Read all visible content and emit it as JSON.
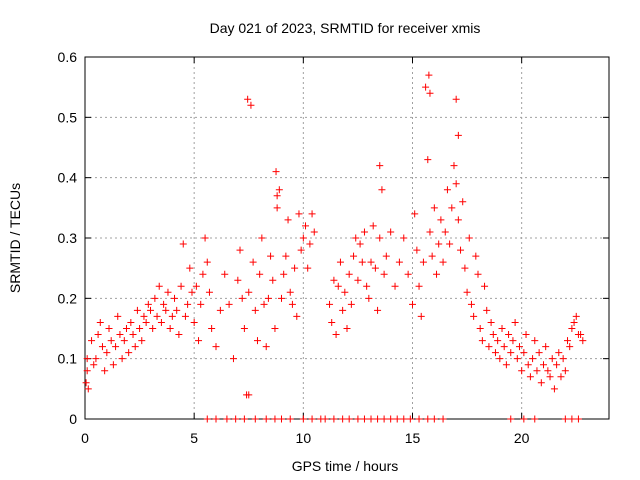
{
  "chart_data": {
    "type": "scatter",
    "title": "Day 021 of 2023, SRMTID for receiver xmis",
    "xlabel": "GPS time / hours",
    "ylabel": "SRMTID / TECUs",
    "xlim": [
      0,
      24
    ],
    "ylim": [
      0,
      0.6
    ],
    "xticks": [
      0,
      5,
      10,
      15,
      20
    ],
    "xtick_labels": [
      "0",
      "5",
      "10",
      "15",
      "20"
    ],
    "yticks": [
      0,
      0.1,
      0.2,
      0.3,
      0.4,
      0.5,
      0.6
    ],
    "ytick_labels": [
      "0",
      "0.1",
      "0.2",
      "0.3",
      "0.4",
      "0.5",
      "0.6"
    ],
    "grid": true,
    "marker": "+",
    "color": "#ff0000",
    "series": [
      {
        "name": "SRMTID",
        "x": [
          0.05,
          0.1,
          0.15,
          0.3,
          0.4,
          0.5,
          0.6,
          0.7,
          0.8,
          0.9,
          1.0,
          1.1,
          1.2,
          1.3,
          1.4,
          1.5,
          1.6,
          1.7,
          1.8,
          1.9,
          2.0,
          2.1,
          2.2,
          2.3,
          2.4,
          2.5,
          2.6,
          2.7,
          2.8,
          2.9,
          3.0,
          3.1,
          3.2,
          3.3,
          3.4,
          3.5,
          3.6,
          3.7,
          3.8,
          3.9,
          4.0,
          4.1,
          4.2,
          4.3,
          4.4,
          4.5,
          4.6,
          4.7,
          4.8,
          4.9,
          5.0,
          5.1,
          5.2,
          5.3,
          5.4,
          5.5,
          5.6,
          5.7,
          5.8,
          6.0,
          6.2,
          6.4,
          6.6,
          6.8,
          7.0,
          7.1,
          7.2,
          7.3,
          7.4,
          7.5,
          7.6,
          7.7,
          7.8,
          7.9,
          8.0,
          8.1,
          8.2,
          8.3,
          8.4,
          8.5,
          8.6,
          8.7,
          8.8,
          8.9,
          9.0,
          9.1,
          9.2,
          9.3,
          9.4,
          9.5,
          9.6,
          9.7,
          9.8,
          9.9,
          10.0,
          10.1,
          10.2,
          10.3,
          10.4,
          10.5,
          11.2,
          11.3,
          11.4,
          11.5,
          11.6,
          11.7,
          11.8,
          11.9,
          12.0,
          12.1,
          12.2,
          12.3,
          12.4,
          12.5,
          12.6,
          12.7,
          12.8,
          12.9,
          13.0,
          13.1,
          13.2,
          13.3,
          13.4,
          13.5,
          13.6,
          13.7,
          13.8,
          14.0,
          14.2,
          14.4,
          14.6,
          14.8,
          15.0,
          15.1,
          15.2,
          15.3,
          15.4,
          15.5,
          15.6,
          15.7,
          15.8,
          15.9,
          16.0,
          16.1,
          16.2,
          16.3,
          16.4,
          16.5,
          16.6,
          16.7,
          16.8,
          16.9,
          17.0,
          17.1,
          17.2,
          17.3,
          17.4,
          17.5,
          17.6,
          17.7,
          17.8,
          17.9,
          18.0,
          18.1,
          18.2,
          18.3,
          18.4,
          18.5,
          18.6,
          18.7,
          18.8,
          18.9,
          19.0,
          19.1,
          19.2,
          19.3,
          19.4,
          19.5,
          19.6,
          19.7,
          19.8,
          19.9,
          20.0,
          20.1,
          20.2,
          20.3,
          20.4,
          20.5,
          20.6,
          20.7,
          20.8,
          20.9,
          21.0,
          21.1,
          21.2,
          21.3,
          21.4,
          21.5,
          21.6,
          21.7,
          21.8,
          21.9,
          22.0,
          22.1,
          22.2,
          22.3,
          22.4,
          22.5,
          22.6,
          22.7,
          22.8,
          7.45,
          7.5,
          15.75,
          15.8,
          17.0,
          17.1,
          8.75,
          8.8,
          13.5,
          0.1,
          5.6,
          6.0,
          6.5,
          6.9,
          7.3,
          7.8,
          8.3,
          8.7,
          9.0,
          9.4,
          10.0,
          10.4,
          10.8,
          11.0,
          11.4,
          11.8,
          12.1,
          12.5,
          12.8,
          13.1,
          13.4,
          13.7,
          14.0,
          14.3,
          14.6,
          14.9,
          15.3,
          15.7,
          16.0,
          16.4,
          19.5,
          20.1,
          20.6,
          22.0,
          22.3,
          22.6
        ],
        "y": [
          0.06,
          0.08,
          0.05,
          0.13,
          0.09,
          0.1,
          0.14,
          0.16,
          0.12,
          0.08,
          0.11,
          0.15,
          0.13,
          0.09,
          0.12,
          0.17,
          0.14,
          0.1,
          0.13,
          0.15,
          0.11,
          0.16,
          0.14,
          0.12,
          0.18,
          0.15,
          0.13,
          0.17,
          0.16,
          0.19,
          0.18,
          0.15,
          0.2,
          0.17,
          0.22,
          0.16,
          0.19,
          0.18,
          0.21,
          0.15,
          0.17,
          0.2,
          0.18,
          0.14,
          0.22,
          0.29,
          0.17,
          0.19,
          0.25,
          0.21,
          0.16,
          0.22,
          0.13,
          0.19,
          0.24,
          0.3,
          0.26,
          0.21,
          0.15,
          0.12,
          0.18,
          0.24,
          0.19,
          0.1,
          0.23,
          0.28,
          0.2,
          0.15,
          0.04,
          0.21,
          0.52,
          0.26,
          0.18,
          0.13,
          0.24,
          0.3,
          0.19,
          0.12,
          0.2,
          0.27,
          0.23,
          0.15,
          0.35,
          0.38,
          0.2,
          0.24,
          0.27,
          0.33,
          0.21,
          0.19,
          0.25,
          0.17,
          0.34,
          0.28,
          0.3,
          0.32,
          0.25,
          0.29,
          0.34,
          0.31,
          0.19,
          0.16,
          0.23,
          0.14,
          0.22,
          0.26,
          0.18,
          0.21,
          0.15,
          0.24,
          0.19,
          0.27,
          0.3,
          0.23,
          0.29,
          0.26,
          0.31,
          0.22,
          0.2,
          0.26,
          0.32,
          0.25,
          0.18,
          0.3,
          0.38,
          0.24,
          0.27,
          0.31,
          0.22,
          0.26,
          0.3,
          0.24,
          0.19,
          0.34,
          0.28,
          0.22,
          0.17,
          0.26,
          0.55,
          0.43,
          0.31,
          0.27,
          0.35,
          0.24,
          0.29,
          0.33,
          0.26,
          0.31,
          0.38,
          0.29,
          0.35,
          0.42,
          0.39,
          0.33,
          0.28,
          0.36,
          0.25,
          0.21,
          0.3,
          0.19,
          0.17,
          0.27,
          0.24,
          0.15,
          0.13,
          0.22,
          0.18,
          0.12,
          0.16,
          0.14,
          0.11,
          0.13,
          0.1,
          0.15,
          0.12,
          0.09,
          0.14,
          0.11,
          0.13,
          0.16,
          0.1,
          0.12,
          0.08,
          0.11,
          0.14,
          0.09,
          0.07,
          0.1,
          0.13,
          0.08,
          0.11,
          0.06,
          0.09,
          0.12,
          0.08,
          0.07,
          0.1,
          0.05,
          0.09,
          0.11,
          0.07,
          0.1,
          0.08,
          0.13,
          0.12,
          0.15,
          0.16,
          0.17,
          0.14,
          0.14,
          0.13,
          0.53,
          0.04,
          0.57,
          0.54,
          0.53,
          0.47,
          0.41,
          0.37,
          0.42,
          0.1,
          0,
          0,
          0,
          0,
          0,
          0,
          0,
          0,
          0,
          0,
          0,
          0,
          0,
          0,
          0,
          0,
          0,
          0,
          0,
          0,
          0,
          0,
          0,
          0,
          0,
          0,
          0,
          0,
          0,
          0,
          0,
          0,
          0,
          0,
          0,
          0
        ]
      }
    ]
  }
}
